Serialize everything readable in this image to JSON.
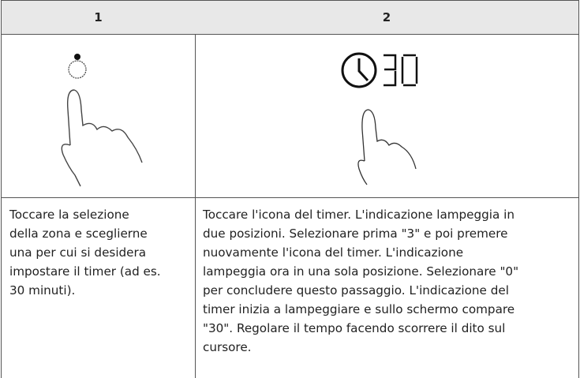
{
  "table": {
    "header": [
      "1",
      "2"
    ],
    "steps": [
      {
        "lines": [
          "Toccare la selezione",
          "della zona e sceglierne",
          "una per cui si desidera",
          "impostare il timer (ad es.",
          "30 minuti)."
        ]
      },
      {
        "lines": [
          "Toccare l'icona del timer. L'indicazione lampeggia in",
          "due posizioni. Selezionare prima \"3\" e poi premere",
          "nuovamente l'icona del timer. L'indicazione",
          "lampeggia ora in una sola posizione. Selezionare \"0\"",
          "per concludere questo passaggio. L'indicazione del",
          "timer inizia a lampeggiare e sullo schermo compare",
          "\"30\". Regolare il tempo facendo scorrere il dito sul",
          "cursore."
        ]
      }
    ]
  }
}
